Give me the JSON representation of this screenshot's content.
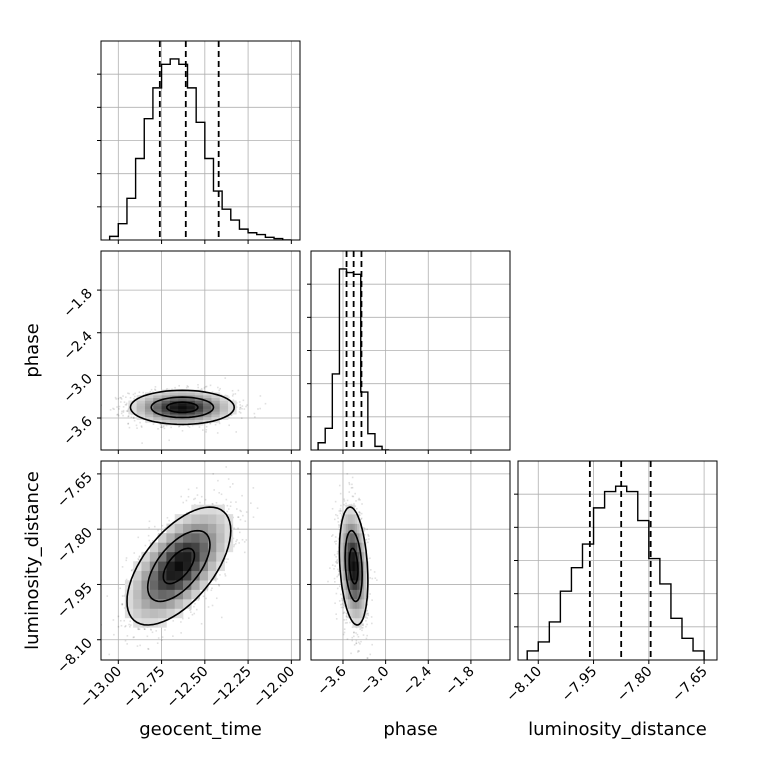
{
  "chart_data": {
    "type": "corner",
    "parameters": [
      "geocent_time",
      "phase",
      "luminosity_distance"
    ],
    "ranges": {
      "geocent_time": [
        -13.1,
        -11.95
      ],
      "phase": [
        -4.05,
        -1.25
      ],
      "luminosity_distance": [
        -8.155,
        -7.615
      ]
    },
    "ticks": {
      "geocent_time": {
        "values": [
          -13.0,
          -12.75,
          -12.5,
          -12.25,
          -12.0
        ],
        "labels": [
          "−13.00",
          "−12.75",
          "−12.50",
          "−12.25",
          "−12.00"
        ]
      },
      "phase": {
        "values": [
          -3.6,
          -3.0,
          -2.4,
          -1.8
        ],
        "labels": [
          "−3.6",
          "−3.0",
          "−2.4",
          "−1.8"
        ]
      },
      "luminosity_distance": {
        "values": [
          -8.1,
          -7.95,
          -7.8,
          -7.65
        ],
        "labels": [
          "−8.10",
          "−7.95",
          "−7.80",
          "−7.65"
        ]
      }
    },
    "quantiles": {
      "geocent_time": [
        -12.76,
        -12.61,
        -12.42
      ],
      "phase": [
        -3.55,
        -3.45,
        -3.34
      ],
      "luminosity_distance": [
        -7.96,
        -7.875,
        -7.795
      ]
    },
    "histograms": {
      "geocent_time": {
        "edges": [
          -13.05,
          -13.0,
          -12.95,
          -12.9,
          -12.85,
          -12.8,
          -12.75,
          -12.7,
          -12.65,
          -12.6,
          -12.55,
          -12.5,
          -12.45,
          -12.4,
          -12.35,
          -12.3,
          -12.25,
          -12.2,
          -12.15,
          -12.1,
          -12.05,
          -12.0
        ],
        "counts": [
          0.02,
          0.09,
          0.23,
          0.45,
          0.67,
          0.84,
          0.97,
          1.0,
          0.97,
          0.84,
          0.65,
          0.45,
          0.27,
          0.17,
          0.11,
          0.06,
          0.04,
          0.03,
          0.015,
          0.008,
          0.0
        ]
      },
      "phase": {
        "edges": [
          -3.95,
          -3.85,
          -3.75,
          -3.65,
          -3.55,
          -3.45,
          -3.35,
          -3.25,
          -3.15,
          -3.05,
          -2.95
        ],
        "counts": [
          0.04,
          0.12,
          0.42,
          1.0,
          0.98,
          0.97,
          0.32,
          0.09,
          0.02,
          0.0
        ]
      },
      "luminosity_distance": {
        "edges": [
          -8.13,
          -8.1,
          -8.07,
          -8.04,
          -8.01,
          -7.98,
          -7.95,
          -7.92,
          -7.89,
          -7.86,
          -7.83,
          -7.8,
          -7.77,
          -7.74,
          -7.71,
          -7.68,
          -7.65
        ],
        "counts": [
          0.05,
          0.1,
          0.21,
          0.38,
          0.51,
          0.64,
          0.84,
          0.93,
          0.96,
          0.93,
          0.77,
          0.56,
          0.42,
          0.23,
          0.12,
          0.05
        ]
      }
    },
    "posteriors_2d": [
      {
        "x": "geocent_time",
        "y": "phase",
        "mean": [
          -12.63,
          -3.45
        ],
        "sd": [
          0.15,
          0.12
        ],
        "corr": 0.0
      },
      {
        "x": "geocent_time",
        "y": "luminosity_distance",
        "mean": [
          -12.65,
          -7.9
        ],
        "sd": [
          0.15,
          0.08
        ],
        "corr": 0.6
      },
      {
        "x": "phase",
        "y": "luminosity_distance",
        "mean": [
          -3.45,
          -7.9
        ],
        "sd": [
          0.1,
          0.08
        ],
        "corr": -0.25
      }
    ],
    "grid": true
  }
}
